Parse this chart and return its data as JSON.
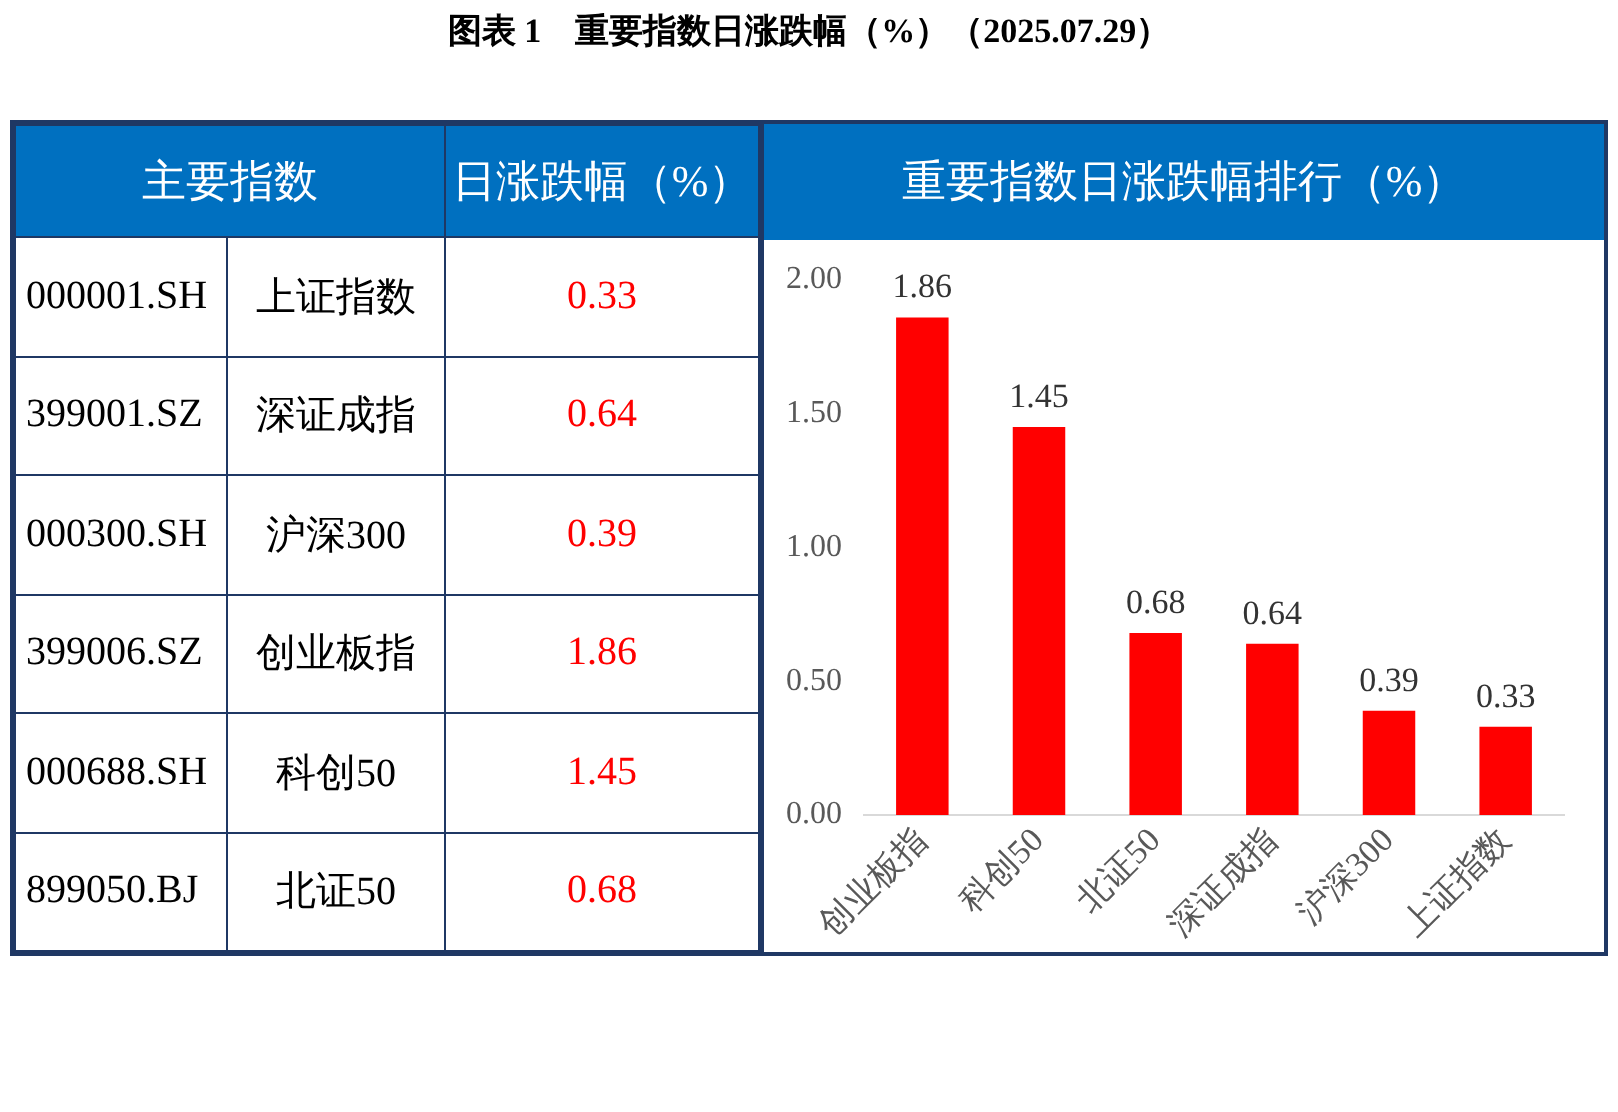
{
  "chart_data": [
    {
      "type": "other",
      "title": "图表 1　重要指数日涨跌幅（%）（2025.07.29）",
      "xlabel": "主要指数",
      "ylabel": "日涨跌幅（%）",
      "categories": [
        "上证指数",
        "深证成指",
        "沪深300",
        "创业板指",
        "科创50",
        "北证50"
      ],
      "annotations": [
        "000001.SH",
        "399001.SZ",
        "000300.SH",
        "399006.SZ",
        "000688.SH",
        "899050.BJ"
      ],
      "values": [
        0.33,
        0.64,
        0.39,
        1.86,
        1.45,
        0.68
      ],
      "color": "#ff0000",
      "data_labels": true
    },
    {
      "type": "bar",
      "title": "重要指数日涨跌幅排行（%）",
      "categories": [
        "创业板指",
        "科创50",
        "北证50",
        "深证成指",
        "沪深300",
        "上证指数"
      ],
      "values": [
        1.86,
        1.45,
        0.68,
        0.64,
        0.39,
        0.33
      ],
      "color": "#ff0000",
      "ylim": [
        0,
        2
      ],
      "yticks": [
        {
          "value": 0,
          "label": "0.00"
        },
        {
          "value": 0.5,
          "label": "0.50"
        },
        {
          "value": 1,
          "label": "1.00"
        },
        {
          "value": 1.5,
          "label": "1.50"
        },
        {
          "value": 2,
          "label": "2.00"
        }
      ],
      "grid": false,
      "legend": false,
      "data_labels": true
    }
  ]
}
